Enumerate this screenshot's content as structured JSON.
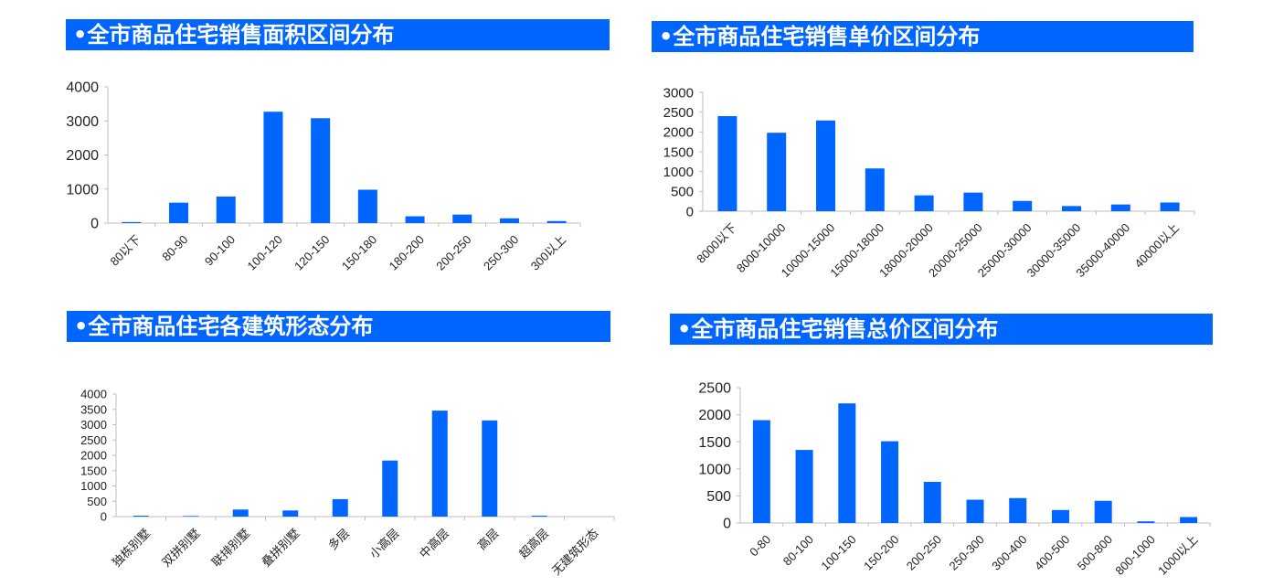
{
  "colors": {
    "accent": "#0066ff",
    "bar": "#0066ff",
    "axis": "#bfbfbf",
    "title_text": "#ffffff"
  },
  "panels": [
    {
      "title": "•全市商品住宅销售面积区间分布"
    },
    {
      "title": "•全市商品住宅销售单价区间分布"
    },
    {
      "title": "•全市商品住宅各建筑形态分布"
    },
    {
      "title": "•全市商品住宅销售总价区间分布"
    }
  ],
  "chart_data": [
    {
      "type": "bar",
      "title": "•全市商品住宅销售面积区间分布",
      "categories": [
        "80以下",
        "80-90",
        "90-100",
        "100-120",
        "120-150",
        "150-180",
        "180-200",
        "200-250",
        "250-300",
        "300以上"
      ],
      "values": [
        30,
        600,
        780,
        3270,
        3080,
        980,
        200,
        250,
        140,
        60
      ],
      "ylim": [
        0,
        4000
      ],
      "yticks": [
        0,
        1000,
        2000,
        3000,
        4000
      ],
      "grid": false,
      "legend": "none"
    },
    {
      "type": "bar",
      "title": "•全市商品住宅销售单价区间分布",
      "categories": [
        "8000以下",
        "8000-10000",
        "10000-15000",
        "15000-18000",
        "18000-20000",
        "20000-25000",
        "25000-30000",
        "30000-35000",
        "35000-40000",
        "40000以上"
      ],
      "values": [
        2400,
        1980,
        2290,
        1080,
        400,
        470,
        260,
        130,
        170,
        220
      ],
      "ylim": [
        0,
        3000
      ],
      "yticks": [
        0,
        500,
        1000,
        1500,
        2000,
        2500,
        3000
      ],
      "grid": false,
      "legend": "none"
    },
    {
      "type": "bar",
      "title": "•全市商品住宅各建筑形态分布",
      "categories": [
        "独栋别墅",
        "双拼别墅",
        "联排别墅",
        "叠拼别墅",
        "多层",
        "小高层",
        "中高层",
        "高层",
        "超高层",
        "无建筑形态"
      ],
      "values": [
        30,
        20,
        230,
        200,
        570,
        1830,
        3460,
        3140,
        30,
        0
      ],
      "ylim": [
        0,
        4000
      ],
      "yticks": [
        0,
        500,
        1000,
        1500,
        2000,
        2500,
        3000,
        3500,
        4000
      ],
      "grid": false,
      "legend": "none"
    },
    {
      "type": "bar",
      "title": "•全市商品住宅销售总价区间分布",
      "categories": [
        "0-80",
        "80-100",
        "100-150",
        "150-200",
        "200-250",
        "250-300",
        "300-400",
        "400-500",
        "500-800",
        "800-1000",
        "1000以上"
      ],
      "values": [
        1900,
        1350,
        2210,
        1510,
        760,
        430,
        460,
        240,
        410,
        30,
        110
      ],
      "ylim": [
        0,
        2500
      ],
      "yticks": [
        0,
        500,
        1000,
        1500,
        2000,
        2500
      ],
      "grid": false,
      "legend": "none"
    }
  ]
}
